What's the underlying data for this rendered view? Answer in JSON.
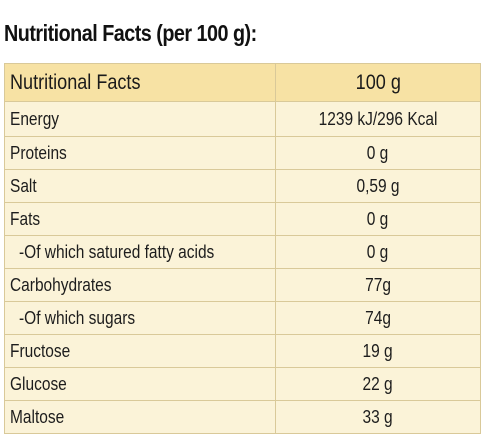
{
  "title": "Nutritional Facts (per 100 g):",
  "header": {
    "label": "Nutritional Facts",
    "value": "100 g"
  },
  "rows": [
    {
      "label": "Energy",
      "value": "1239 kJ/296 Kcal"
    },
    {
      "label": "Proteins",
      "value": "0 g"
    },
    {
      "label": "Salt",
      "value": "0,59 g"
    },
    {
      "label": "Fats",
      "value": "0 g"
    },
    {
      "label": "-Of which satured fatty acids",
      "value": "0 g"
    },
    {
      "label": "Carbohydrates",
      "value": "77g"
    },
    {
      "label": "-Of which sugars",
      "value": "74g"
    },
    {
      "label": "Fructose",
      "value": "19 g"
    },
    {
      "label": "Glucose",
      "value": "22 g"
    },
    {
      "label": "Maltose",
      "value": "33 g"
    }
  ],
  "colors": {
    "header_bg": "#f7e2a4",
    "row_bg": "#fbf3d8",
    "border": "#d9c999"
  }
}
